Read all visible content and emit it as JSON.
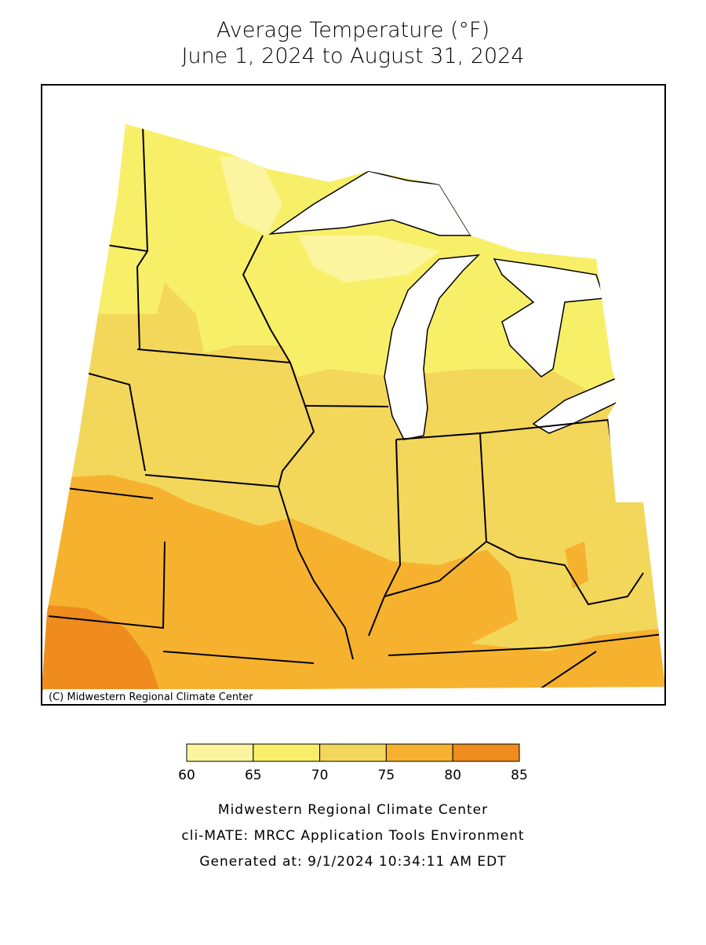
{
  "title": [
    "Average Temperature (°F)",
    "June 1, 2024 to August 31, 2024"
  ],
  "copyright": "(C) Midwestern Regional Climate Center",
  "legend": {
    "bins": [
      60,
      65,
      70,
      75,
      80,
      85
    ],
    "colors": [
      "#fbf59f",
      "#f8ef69",
      "#f3d75b",
      "#f6b22f",
      "#ef8c1d"
    ]
  },
  "footer": [
    "Midwestern Regional Climate Center",
    "cli-MATE: MRCC Application Tools Environment",
    "Generated at: 9/1/2024 10:34:11 AM EDT"
  ]
}
